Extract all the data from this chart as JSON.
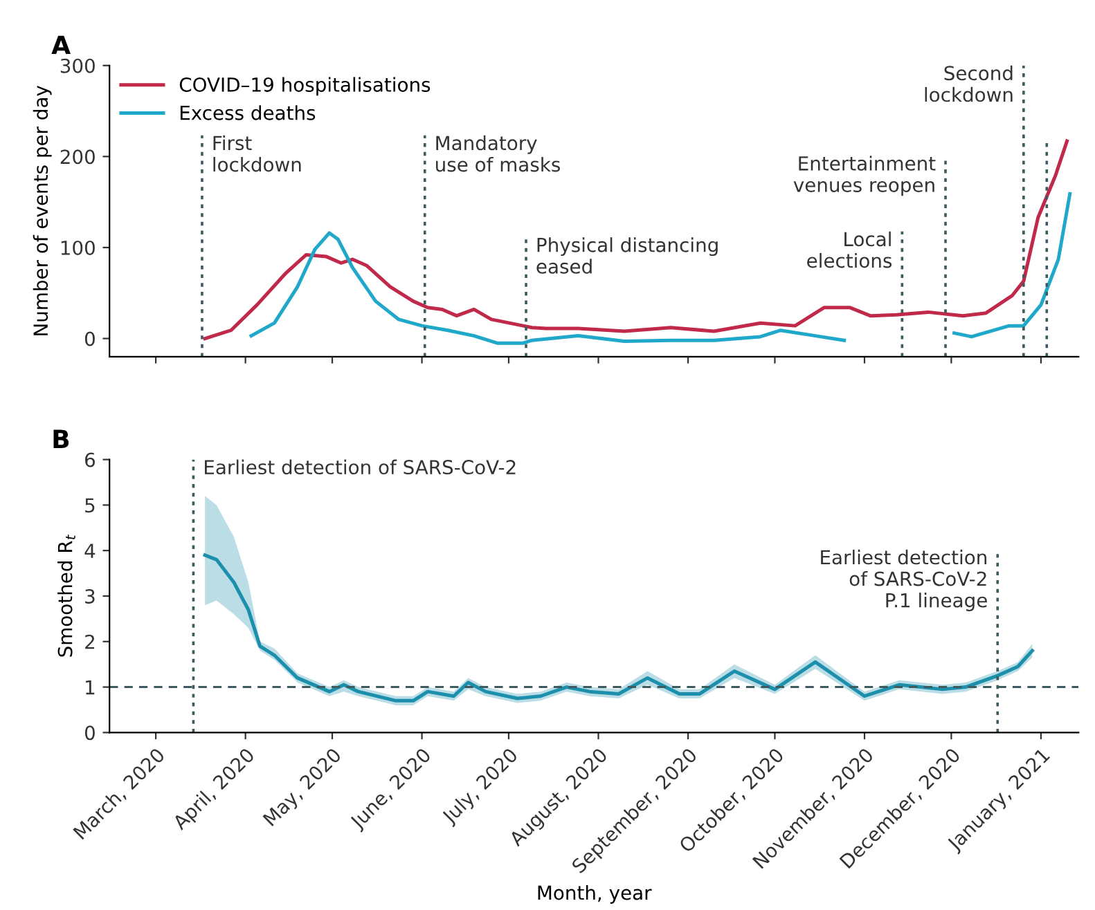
{
  "chart_data": [
    {
      "type": "line",
      "title": "A",
      "ylabel": "Number of events per day",
      "legend": "top left",
      "tick_labels": "y",
      "line_style": "solid",
      "xlim": [
        "2020-02-14",
        "2021-01-14"
      ],
      "ylim": [
        -20,
        300
      ],
      "yticks": [
        0,
        100,
        200,
        300
      ],
      "xticks": [
        {
          "value": "2020-03-01",
          "label": null
        },
        {
          "value": "2020-04-01",
          "label": null
        },
        {
          "value": "2020-05-01",
          "label": null
        },
        {
          "value": "2020-06-01",
          "label": null
        },
        {
          "value": "2020-07-01",
          "label": null
        },
        {
          "value": "2020-08-01",
          "label": null
        },
        {
          "value": "2020-09-01",
          "label": null
        },
        {
          "value": "2020-10-01",
          "label": null
        },
        {
          "value": "2020-11-01",
          "label": null
        },
        {
          "value": "2020-12-01",
          "label": null
        },
        {
          "value": "2021-01-01",
          "label": null
        }
      ],
      "series": [
        {
          "name": "COVID–19 hospitalisations",
          "color": "#c0294a",
          "x": [
            "2020-03-18",
            "2020-03-27",
            "2020-04-05",
            "2020-04-15",
            "2020-04-22",
            "2020-04-29",
            "2020-05-04",
            "2020-05-08",
            "2020-05-13",
            "2020-05-21",
            "2020-05-29",
            "2020-06-03",
            "2020-06-08",
            "2020-06-13",
            "2020-06-19",
            "2020-06-25",
            "2020-07-06",
            "2020-07-09",
            "2020-07-14",
            "2020-07-25",
            "2020-08-10",
            "2020-08-26",
            "2020-09-10",
            "2020-09-26",
            "2020-10-08",
            "2020-10-18",
            "2020-10-27",
            "2020-11-03",
            "2020-11-12",
            "2020-11-23",
            "2020-12-05",
            "2020-12-13",
            "2020-12-22",
            "2020-12-26",
            "2020-12-31",
            "2021-01-06",
            "2021-01-10"
          ],
          "values": [
            0,
            9,
            37,
            72,
            92,
            90,
            83,
            87,
            80,
            57,
            41,
            34,
            32,
            25,
            32,
            21,
            14,
            12,
            11,
            11,
            8,
            12,
            8,
            17,
            14,
            34,
            34,
            25,
            26,
            29,
            25,
            28,
            47,
            63,
            133,
            179,
            217
          ]
        },
        {
          "name": "Excess deaths",
          "color": "#1fa8c9",
          "x": [
            "2020-04-03",
            "2020-04-11",
            "2020-04-19",
            "2020-04-25",
            "2020-04-30",
            "2020-05-03",
            "2020-05-08",
            "2020-05-16",
            "2020-05-24",
            "2020-06-01",
            "2020-06-10",
            "2020-06-19",
            "2020-06-27",
            "2020-07-06",
            "2020-07-09",
            "2020-07-25",
            "2020-08-10",
            "2020-08-26",
            "2020-09-10",
            "2020-09-26",
            "2020-10-03",
            "2020-10-15",
            "2020-10-25",
            "2020-11-15",
            "2020-12-02",
            "2020-12-08",
            "2020-12-21",
            "2020-12-26",
            "2021-01-01",
            "2021-01-07",
            "2021-01-11"
          ],
          "values": [
            3,
            17,
            57,
            98,
            116,
            109,
            78,
            41,
            21,
            14,
            9,
            3,
            -5,
            -5,
            -2,
            3,
            -3,
            -2,
            -2,
            2,
            9,
            3,
            -2,
            null,
            6,
            2,
            14,
            14,
            37,
            87,
            159
          ]
        }
      ],
      "ref_lines": [
        {
          "axis": "x",
          "value": "2020-03-17",
          "label": "First\nlockdown",
          "color": "#3d5a5e",
          "line_style": "dotted"
        },
        {
          "axis": "x",
          "value": "2020-06-02",
          "label": "Mandatory\nuse of masks",
          "color": "#3d5a5e",
          "line_style": "dotted"
        },
        {
          "axis": "x",
          "value": "2020-07-07",
          "label": "Physical distancing\neased",
          "color": "#3d5a5e",
          "line_style": "dotted"
        },
        {
          "axis": "x",
          "value": "2020-11-14",
          "label": "Local\nelections",
          "color": "#3d5a5e",
          "line_style": "dotted"
        },
        {
          "axis": "x",
          "value": "2020-11-29",
          "label": "Entertainment\nvenues reopen",
          "color": "#3d5a5e",
          "line_style": "dotted"
        },
        {
          "axis": "x",
          "value": "2020-12-26",
          "label": "Second\nlockdown",
          "color": "#3d5a5e",
          "line_style": "dotted"
        },
        {
          "axis": "x",
          "value": "2021-01-03",
          "color": "#3d5a5e",
          "line_style": "dotted"
        }
      ]
    },
    {
      "type": "line",
      "title": "B",
      "ylabel": "Smoothed R$_{t}$",
      "xlabel": "Month, year",
      "line_style": "solid",
      "xlim": [
        "2020-02-14",
        "2021-01-14"
      ],
      "ylim": [
        0,
        6
      ],
      "yticks": [
        0,
        1,
        2,
        3,
        4,
        5,
        6
      ],
      "xticks": [
        {
          "value": "2020-03-01",
          "label": "March, 2020"
        },
        {
          "value": "2020-04-01",
          "label": "April, 2020"
        },
        {
          "value": "2020-05-01",
          "label": "May, 2020"
        },
        {
          "value": "2020-06-01",
          "label": "June, 2020"
        },
        {
          "value": "2020-07-01",
          "label": "July, 2020"
        },
        {
          "value": "2020-08-01",
          "label": "August, 2020"
        },
        {
          "value": "2020-09-01",
          "label": "September, 2020"
        },
        {
          "value": "2020-10-01",
          "label": "October, 2020"
        },
        {
          "value": "2020-11-01",
          "label": "November, 2020"
        },
        {
          "value": "2020-12-01",
          "label": "December, 2020"
        },
        {
          "value": "2021-01-01",
          "label": "January, 2021"
        }
      ],
      "series": [
        {
          "color": "#1b8fab",
          "x": [
            "2020-03-18",
            "2020-03-22",
            "2020-03-28",
            "2020-04-02",
            "2020-04-06",
            "2020-04-11",
            "2020-04-19",
            "2020-04-30",
            "2020-05-05",
            "2020-05-10",
            "2020-05-23",
            "2020-05-29",
            "2020-06-03",
            "2020-06-12",
            "2020-06-17",
            "2020-06-23",
            "2020-07-04",
            "2020-07-12",
            "2020-07-21",
            "2020-07-29",
            "2020-08-08",
            "2020-08-18",
            "2020-08-29",
            "2020-09-05",
            "2020-09-17",
            "2020-10-01",
            "2020-10-15",
            "2020-11-01",
            "2020-11-13",
            "2020-11-28",
            "2020-12-06",
            "2020-12-17",
            "2020-12-24",
            "2020-12-29"
          ],
          "values": [
            3.9,
            3.8,
            3.3,
            2.7,
            1.9,
            1.7,
            1.2,
            0.9,
            1.05,
            0.9,
            0.7,
            0.7,
            0.9,
            0.8,
            1.1,
            0.9,
            0.75,
            0.8,
            1.0,
            0.9,
            0.85,
            1.2,
            0.85,
            0.85,
            1.35,
            0.95,
            1.55,
            0.8,
            1.05,
            0.95,
            1.0,
            1.25,
            1.45,
            1.8
          ],
          "lower": [
            2.8,
            2.9,
            2.6,
            2.3,
            1.8,
            1.6,
            1.1,
            0.8,
            0.9,
            0.8,
            0.6,
            0.6,
            0.8,
            0.7,
            0.95,
            0.8,
            0.65,
            0.7,
            0.9,
            0.8,
            0.75,
            1.05,
            0.75,
            0.75,
            1.2,
            0.85,
            1.4,
            0.7,
            0.95,
            0.85,
            0.9,
            1.15,
            1.35,
            1.65
          ],
          "upper": [
            5.2,
            5.0,
            4.3,
            3.3,
            2.0,
            1.85,
            1.3,
            1.0,
            1.15,
            1.0,
            0.8,
            0.8,
            1.0,
            0.9,
            1.2,
            1.0,
            0.85,
            0.9,
            1.1,
            1.0,
            0.95,
            1.35,
            0.95,
            0.95,
            1.5,
            1.05,
            1.7,
            0.9,
            1.15,
            1.05,
            1.1,
            1.35,
            1.55,
            1.95
          ]
        }
      ],
      "ref_lines": [
        {
          "axis": "x",
          "value": "2020-03-14",
          "label": "Earliest detection of SARS-CoV-2",
          "color": "#3d5a5e",
          "line_style": "dotted"
        },
        {
          "axis": "x",
          "value": "2020-12-17",
          "label": "Earliest detection\nof SARS-CoV-2\nP.1 lineage",
          "color": "#3d5a5e",
          "line_style": "dotted"
        },
        {
          "axis": "y",
          "value": 1,
          "color": "#3d5a5e",
          "line_style": "dashed"
        }
      ]
    }
  ]
}
